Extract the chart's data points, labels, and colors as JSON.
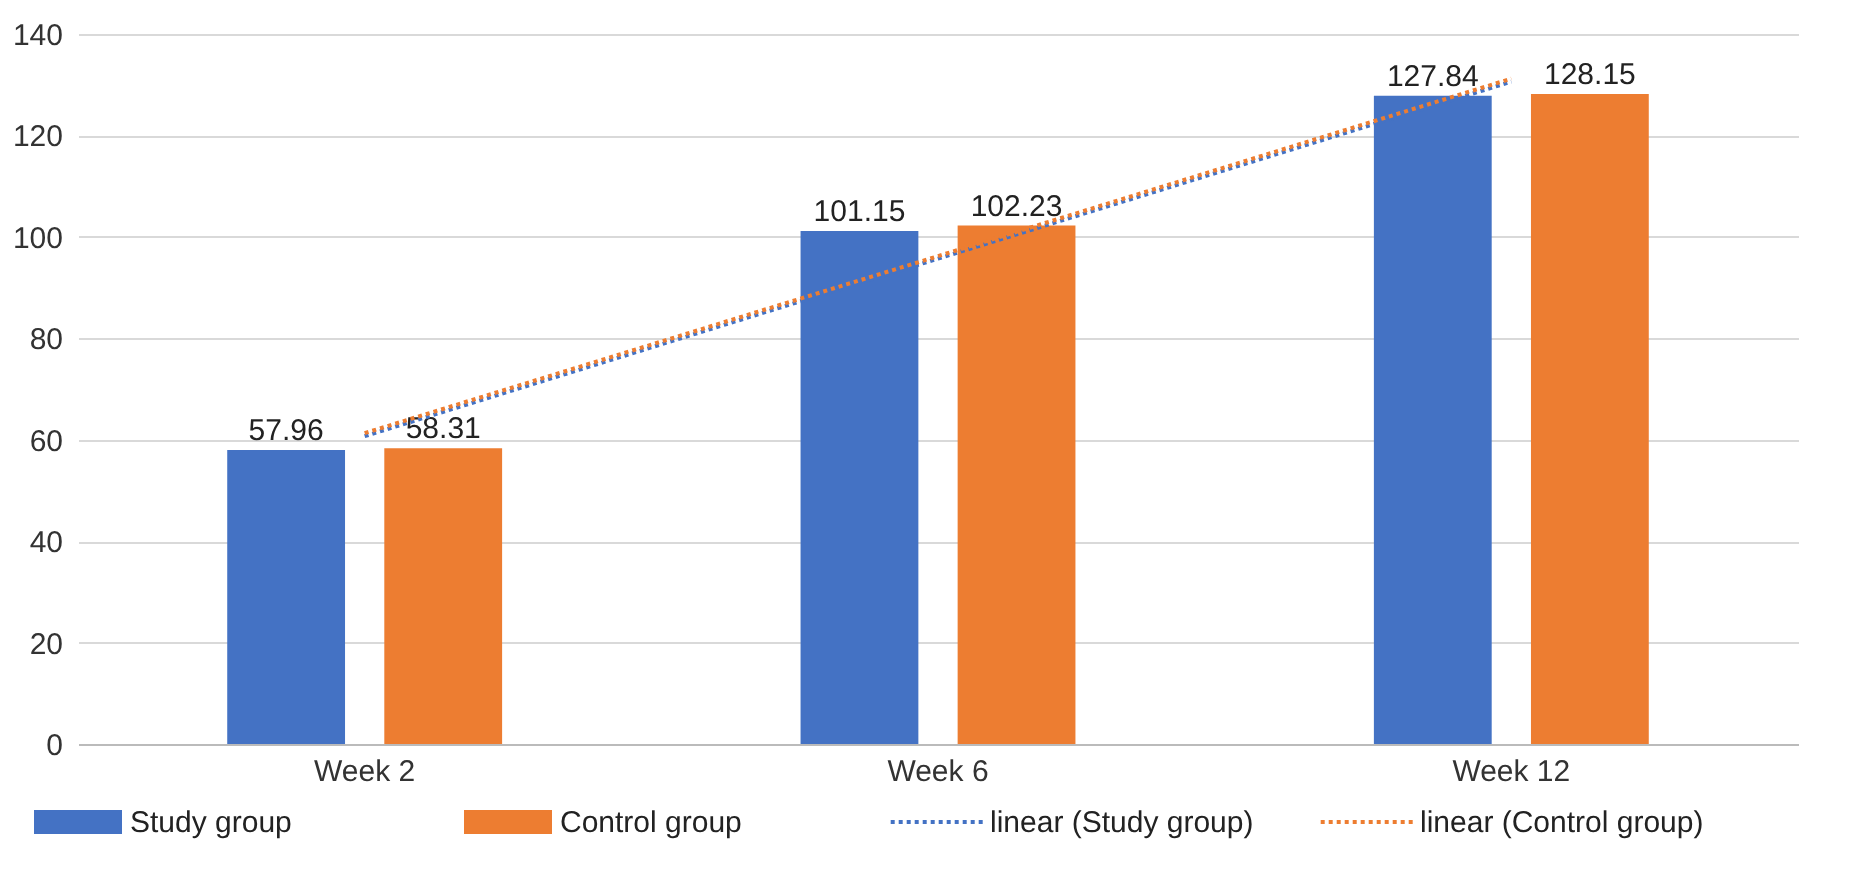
{
  "chart_data": {
    "type": "bar",
    "categories": [
      "Week 2",
      "Week 6",
      "Week 12"
    ],
    "series": [
      {
        "name": "Study group",
        "color": "#4472c4",
        "values": [
          57.96,
          101.15,
          127.84
        ],
        "value_labels": [
          "57.96",
          "101.15",
          "127.84"
        ]
      },
      {
        "name": "Control group",
        "color": "#ed7d31",
        "values": [
          58.31,
          102.23,
          128.15
        ],
        "value_labels": [
          "58.31",
          "102.23",
          "128.15"
        ]
      },
      {
        "name": "linear (Study group)",
        "type": "line",
        "line_style": "dotted",
        "color": "#4472c4",
        "values": [
          60.7,
          95.7,
          130.6
        ]
      },
      {
        "name": "linear (Control group)",
        "type": "line",
        "line_style": "dotted",
        "color": "#ed7d31",
        "values": [
          61.3,
          96.2,
          131.2
        ]
      }
    ],
    "ylim": [
      0,
      140
    ],
    "yticks": [
      0,
      20,
      40,
      60,
      80,
      100,
      120,
      140
    ],
    "grid": "y",
    "legend": "bottom"
  }
}
